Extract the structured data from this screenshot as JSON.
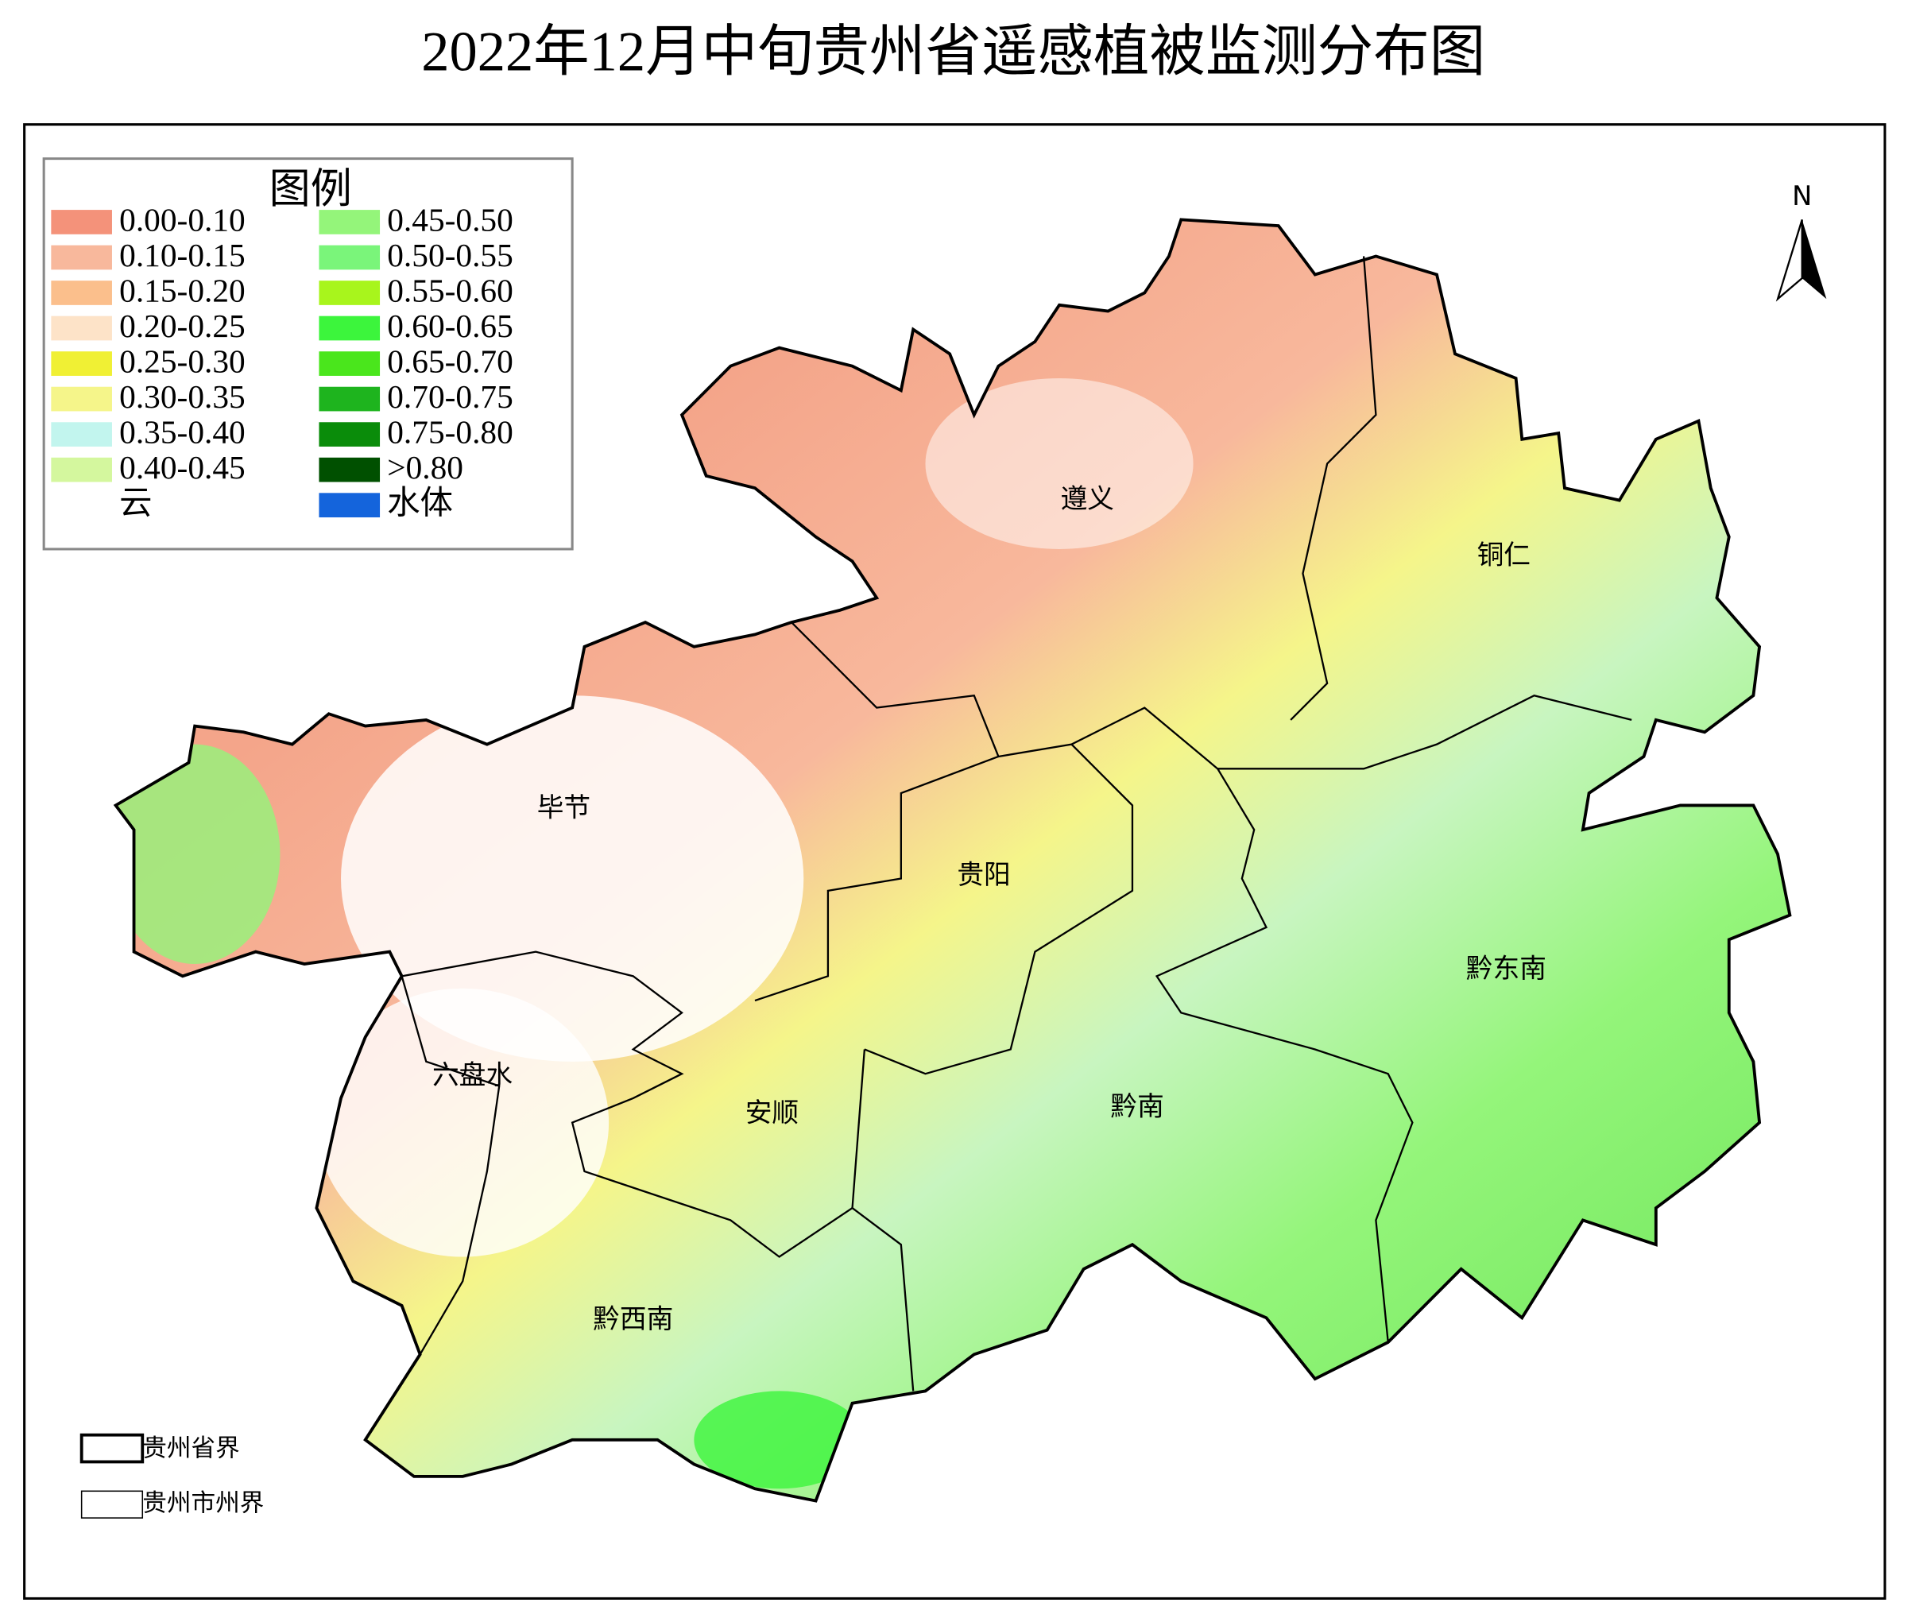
{
  "title": "2022年12月中旬贵州省遥感植被监测分布图",
  "legend": {
    "title": "图例",
    "items": [
      {
        "label": "0.00-0.10",
        "color": "#f4927a"
      },
      {
        "label": "0.10-0.15",
        "color": "#f8b89c"
      },
      {
        "label": "0.15-0.20",
        "color": "#fbbf8c"
      },
      {
        "label": "0.20-0.25",
        "color": "#fde3c8"
      },
      {
        "label": "0.25-0.30",
        "color": "#f0f034"
      },
      {
        "label": "0.30-0.35",
        "color": "#f5f58a"
      },
      {
        "label": "0.35-0.40",
        "color": "#c2f5ee"
      },
      {
        "label": "0.40-0.45",
        "color": "#d4f79e"
      },
      {
        "label": "云",
        "color": "#ffffff"
      },
      {
        "label": "0.45-0.50",
        "color": "#94f57a"
      },
      {
        "label": "0.50-0.55",
        "color": "#7af57a"
      },
      {
        "label": "0.55-0.60",
        "color": "#a8f51c"
      },
      {
        "label": "0.60-0.65",
        "color": "#3cf53c"
      },
      {
        "label": "0.65-0.70",
        "color": "#4ae61c"
      },
      {
        "label": "0.70-0.75",
        "color": "#1eb41e"
      },
      {
        "label": "0.75-0.80",
        "color": "#0a8c0a"
      },
      {
        "label": ">0.80",
        "color": "#005000"
      },
      {
        "label": "水体",
        "color": "#1464dc"
      }
    ]
  },
  "regions": [
    "遵义",
    "铜仁",
    "毕节",
    "贵阳",
    "黔东南",
    "六盘水",
    "黔南",
    "安顺",
    "黔西南"
  ],
  "north": "N",
  "boundary_legend": [
    "贵州省界",
    "贵州市州界"
  ]
}
